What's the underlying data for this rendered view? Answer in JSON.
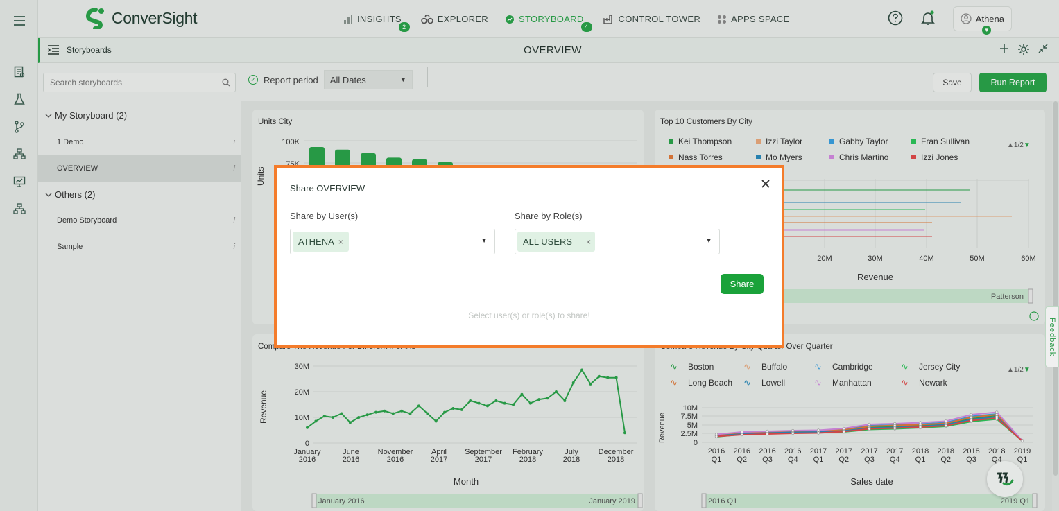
{
  "app": {
    "brand": "ConverSight",
    "accent": "#2aa34a"
  },
  "nav": {
    "items": [
      {
        "label": "INSIGHTS",
        "badge": "2"
      },
      {
        "label": "EXPLORER",
        "badge": ""
      },
      {
        "label": "STORYBOARD",
        "badge": "4"
      },
      {
        "label": "CONTROL TOWER",
        "badge": ""
      },
      {
        "label": "APPS SPACE",
        "badge": ""
      }
    ],
    "active": "STORYBOARD",
    "user": "Athena"
  },
  "subbar": {
    "title": "Storyboards",
    "page": "OVERVIEW"
  },
  "panel": {
    "search_placeholder": "Search storyboards",
    "groups": [
      {
        "label": "My Storyboard (2)",
        "items": [
          "1 Demo",
          "OVERVIEW"
        ]
      },
      {
        "label": "Others (2)",
        "items": [
          "Demo Storyboard",
          "Sample"
        ]
      }
    ],
    "selected": "OVERVIEW",
    "info_glyph": "i"
  },
  "toolbar": {
    "report_period_label": "Report period",
    "dates_value": "All Dates",
    "save_label": "Save",
    "run_label": "Run Report"
  },
  "cards": {
    "units_city": {
      "title": "Units City",
      "ylabel": "Units",
      "yticks": [
        "100K",
        "75K"
      ]
    },
    "top_customers": {
      "title": "Top 10 Customers By City",
      "legend": [
        "Kei Thompson",
        "Izzi Taylor",
        "Gabby Taylor",
        "Fran Sullivan",
        "Nass Torres",
        "Mo Myers",
        "Chris Martino",
        "Izzi Jones"
      ],
      "legend_colors": [
        "#2aa34a",
        "#e8a87c",
        "#3aa0e0",
        "#2cc45a",
        "#e07a3a",
        "#2a8aba",
        "#d28ae0",
        "#e04a4a"
      ],
      "pager": "1/2",
      "xticks": [
        "20M",
        "30M",
        "40M",
        "50M",
        "60M"
      ],
      "xlabel": "Revenue",
      "slider_label": "Patterson"
    },
    "revenue_months": {
      "title": "Compare The Revenue For Different Months",
      "ylabel": "Revenue",
      "xlabel": "Month",
      "yticks": [
        "30M",
        "20M",
        "10M",
        "0"
      ],
      "xticks": [
        [
          "January",
          "2016"
        ],
        [
          "June",
          "2016"
        ],
        [
          "November",
          "2016"
        ],
        [
          "April",
          "2017"
        ],
        [
          "September",
          "2017"
        ],
        [
          "February",
          "2018"
        ],
        [
          "July",
          "2018"
        ],
        [
          "December",
          "2018"
        ]
      ],
      "slider_start": "January 2016",
      "slider_end": "January 2019"
    },
    "revenue_quarter": {
      "title": "Compare Revenue By City Quarter Over Quarter",
      "legend": [
        "Boston",
        "Buffalo",
        "Cambridge",
        "Jersey City",
        "Long Beach",
        "Lowell",
        "Manhattan",
        "Newark"
      ],
      "legend_colors": [
        "#2aa34a",
        "#e8a87c",
        "#3aa0e0",
        "#2cc45a",
        "#e07a3a",
        "#2a8aba",
        "#d28ae0",
        "#e04a4a"
      ],
      "pager": "1/2",
      "ylabel": "Revenue",
      "xlabel": "Sales date",
      "yticks": [
        "10M",
        "7.5M",
        "5M",
        "2.5M",
        "0"
      ],
      "xticks": [
        [
          "2016",
          "Q1"
        ],
        [
          "2016",
          "Q2"
        ],
        [
          "2016",
          "Q3"
        ],
        [
          "2016",
          "Q4"
        ],
        [
          "2017",
          "Q1"
        ],
        [
          "2017",
          "Q2"
        ],
        [
          "2017",
          "Q3"
        ],
        [
          "2017",
          "Q4"
        ],
        [
          "2018",
          "Q1"
        ],
        [
          "2018",
          "Q2"
        ],
        [
          "2018",
          "Q3"
        ],
        [
          "2018",
          "Q4"
        ],
        [
          "2019",
          "Q1"
        ]
      ],
      "slider_start": "2016 Q1",
      "slider_end": "2019 Q1"
    }
  },
  "chart_data": [
    {
      "type": "bar",
      "title": "Units City",
      "ylabel": "Units",
      "values": [
        93000,
        90000,
        86000,
        81000,
        79000,
        76000
      ],
      "ylim": [
        50000,
        100000
      ]
    },
    {
      "type": "line",
      "title": "Compare The Revenue For Different Months",
      "xlabel": "Month",
      "ylabel": "Revenue",
      "ylim": [
        0,
        30000000
      ],
      "series": [
        {
          "values": [
            6000000,
            8500000,
            10500000,
            10000000,
            11500000,
            8000000,
            10000000,
            11000000,
            12000000,
            12500000,
            11500000,
            12500000,
            11500000,
            14500000,
            11500000,
            8500000,
            12000000,
            13500000,
            13000000,
            16500000,
            15500000,
            14500000,
            16500000,
            15500000,
            15000000,
            19000000,
            15500000,
            17000000,
            17500000,
            20000000,
            16500000,
            23500000,
            28500000,
            23000000,
            26000000,
            25500000,
            25500000,
            4000000
          ]
        }
      ]
    },
    {
      "type": "line",
      "title": "Compare Revenue By City Quarter Over Quarter",
      "xlabel": "Sales date",
      "ylabel": "Revenue",
      "ylim": [
        0,
        10000000
      ],
      "series": [
        {
          "name": "Boston",
          "values": [
            2000000,
            2700000,
            2900000,
            3000000,
            3100000,
            3400000,
            4400000,
            4600000,
            4800000,
            5200000,
            6800000,
            7800000,
            500000
          ]
        },
        {
          "name": "Buffalo",
          "values": [
            1800000,
            2500000,
            2600000,
            2800000,
            2900000,
            3200000,
            4000000,
            4200000,
            4500000,
            5000000,
            6500000,
            7200000,
            400000
          ]
        },
        {
          "name": "Cambridge",
          "values": [
            2200000,
            2800000,
            3000000,
            3200000,
            3300000,
            3800000,
            4800000,
            5000000,
            5300000,
            5700000,
            7500000,
            8200000,
            500000
          ]
        },
        {
          "name": "Jersey City",
          "values": [
            1600000,
            2300000,
            2500000,
            2700000,
            2800000,
            3000000,
            3700000,
            3900000,
            4200000,
            4600000,
            6000000,
            6700000,
            400000
          ]
        },
        {
          "name": "Long Beach",
          "values": [
            2100000,
            2600000,
            2800000,
            3000000,
            3200000,
            3600000,
            4600000,
            4900000,
            5100000,
            5500000,
            7200000,
            8000000,
            500000
          ]
        },
        {
          "name": "Lowell",
          "values": [
            1900000,
            2400000,
            2700000,
            2900000,
            3000000,
            3300000,
            4100000,
            4300000,
            4600000,
            5100000,
            6600000,
            7400000,
            400000
          ]
        },
        {
          "name": "Manhattan",
          "values": [
            2300000,
            3000000,
            3200000,
            3400000,
            3500000,
            4000000,
            5200000,
            5400000,
            5700000,
            6100000,
            8000000,
            8700000,
            500000
          ]
        },
        {
          "name": "Newark",
          "values": [
            1700000,
            2200000,
            2400000,
            2600000,
            2700000,
            3100000,
            3900000,
            4100000,
            4400000,
            4800000,
            6300000,
            7000000,
            400000
          ]
        }
      ]
    }
  ],
  "modal": {
    "title": "Share OVERVIEW",
    "users_label": "Share by User(s)",
    "roles_label": "Share by Role(s)",
    "user_chip": "ATHENA",
    "role_chip": "ALL USERS",
    "share_label": "Share",
    "hint": "Select user(s) or role(s) to share!"
  },
  "feedback_label": "Feedback"
}
